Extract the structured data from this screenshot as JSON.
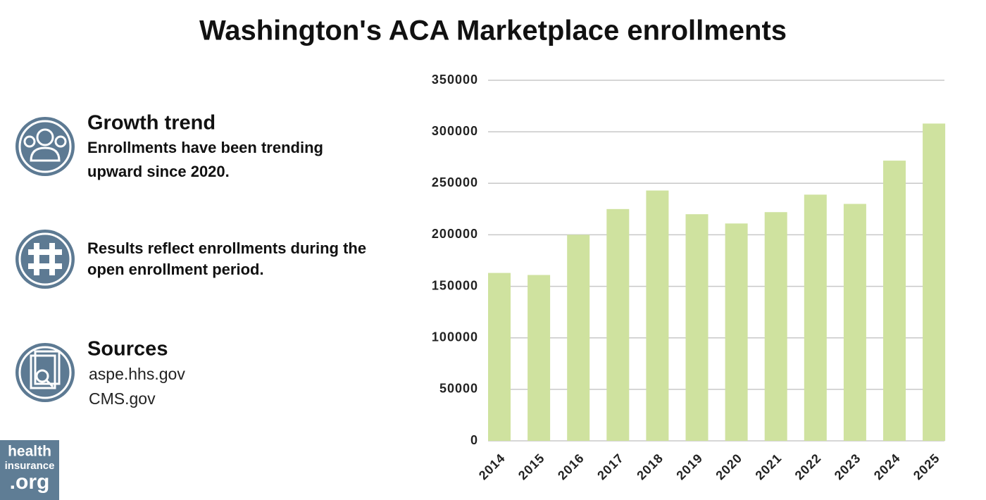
{
  "chart_data": {
    "type": "bar",
    "title": "Washington's ACA Marketplace enrollments",
    "categories": [
      "2014",
      "2015",
      "2016",
      "2017",
      "2018",
      "2019",
      "2020",
      "2021",
      "2022",
      "2023",
      "2024",
      "2025"
    ],
    "values": [
      163000,
      161000,
      200000,
      225000,
      243000,
      220000,
      211000,
      222000,
      239000,
      230000,
      272000,
      308000
    ],
    "color": "#cfe29f",
    "ylim": [
      0,
      350000
    ],
    "yticks": [
      0,
      50000,
      100000,
      150000,
      200000,
      250000,
      300000,
      350000
    ],
    "grid": true
  },
  "sidebar": [
    {
      "heading": "Growth trend",
      "lines": [
        "Enrollments have been trending",
        "upward since 2020."
      ]
    },
    {
      "lines": [
        "Results reflect enrollments during the",
        "open enrollment period."
      ]
    },
    {
      "heading": "Sources",
      "lines": [
        "aspe.hhs.gov",
        "CMS.gov"
      ]
    }
  ],
  "logo": [
    "health",
    "insurance",
    ".org"
  ]
}
